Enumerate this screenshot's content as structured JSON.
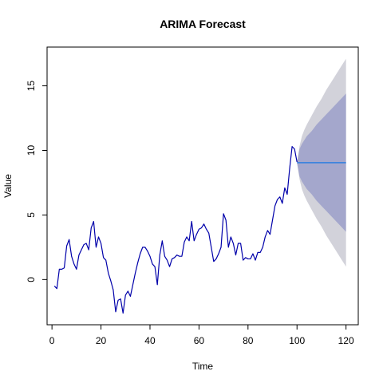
{
  "chart_data": {
    "type": "line",
    "title": "ARIMA Forecast",
    "xlabel": "Time",
    "ylabel": "Value",
    "xlim": [
      -2,
      125
    ],
    "ylim": [
      -3.5,
      18
    ],
    "xticks": [
      0,
      20,
      40,
      60,
      80,
      100,
      120
    ],
    "yticks": [
      0,
      5,
      10,
      15
    ],
    "grid": false,
    "colors": {
      "observed": "#0000aa",
      "forecast": "#2f7fe0",
      "band80": "#a4a7cc",
      "band95": "#d2d2da"
    },
    "series": [
      {
        "type": "observed",
        "x": [
          1,
          2,
          3,
          4,
          5,
          6,
          7,
          8,
          9,
          10,
          11,
          12,
          13,
          14,
          15,
          16,
          17,
          18,
          19,
          20,
          21,
          22,
          23,
          24,
          25,
          26,
          27,
          28,
          29,
          30,
          31,
          32,
          33,
          34,
          35,
          36,
          37,
          38,
          39,
          40,
          41,
          42,
          43,
          44,
          45,
          46,
          47,
          48,
          49,
          50,
          51,
          52,
          53,
          54,
          55,
          56,
          57,
          58,
          59,
          60,
          61,
          62,
          63,
          64,
          65,
          66,
          67,
          68,
          69,
          70,
          71,
          72,
          73,
          74,
          75,
          76,
          77,
          78,
          79,
          80,
          81,
          82,
          83,
          84,
          85,
          86,
          87,
          88,
          89,
          90,
          91,
          92,
          93,
          94,
          95,
          96,
          97,
          98,
          99,
          100
        ],
        "y": [
          -0.5,
          -0.7,
          0.8,
          0.8,
          0.9,
          2.6,
          3.1,
          1.8,
          1.2,
          0.8,
          1.9,
          2.3,
          2.7,
          2.8,
          2.3,
          4.0,
          4.5,
          2.5,
          3.3,
          2.8,
          1.7,
          1.5,
          0.5,
          -0.1,
          -0.8,
          -2.5,
          -1.6,
          -1.5,
          -2.6,
          -1.2,
          -0.9,
          -1.3,
          -0.4,
          0.5,
          1.3,
          2.0,
          2.5,
          2.5,
          2.2,
          1.8,
          1.2,
          1.0,
          -0.4,
          1.9,
          3.0,
          1.8,
          1.5,
          1.0,
          1.6,
          1.7,
          1.9,
          1.8,
          1.8,
          2.9,
          3.3,
          3.0,
          4.5,
          3.0,
          3.5,
          3.9,
          4.0,
          4.3,
          3.9,
          3.6,
          2.5,
          1.4,
          1.6,
          2.0,
          2.5,
          5.1,
          4.6,
          2.5,
          3.3,
          2.8,
          1.9,
          2.8,
          2.8,
          1.5,
          1.7,
          1.6,
          1.6,
          2.0,
          1.5,
          2.1,
          2.1,
          2.5,
          3.3,
          3.8,
          3.5,
          4.6,
          5.7,
          6.2,
          6.4,
          5.9,
          7.1,
          6.6,
          8.6,
          10.3,
          10.1,
          9.1
        ]
      },
      {
        "type": "forecast",
        "x": [
          100,
          120
        ],
        "y": [
          9.05,
          9.05
        ]
      }
    ],
    "intervals": {
      "x": [
        100,
        101,
        102,
        103,
        104,
        106,
        108,
        110,
        112,
        114,
        116,
        118,
        120
      ],
      "lower95": [
        9.05,
        7.8,
        7.0,
        6.5,
        6.1,
        5.4,
        4.7,
        4.1,
        3.4,
        2.8,
        2.2,
        1.6,
        1.0
      ],
      "upper95": [
        9.05,
        10.3,
        11.1,
        11.6,
        12.0,
        12.7,
        13.4,
        14.0,
        14.7,
        15.3,
        15.9,
        16.5,
        17.1
      ],
      "lower80": [
        9.05,
        8.0,
        7.6,
        7.3,
        7.0,
        6.6,
        6.1,
        5.7,
        5.3,
        4.9,
        4.5,
        4.1,
        3.7
      ],
      "upper80": [
        9.05,
        10.1,
        10.5,
        10.8,
        11.1,
        11.5,
        12.0,
        12.4,
        12.8,
        13.2,
        13.6,
        14.0,
        14.4
      ]
    }
  }
}
